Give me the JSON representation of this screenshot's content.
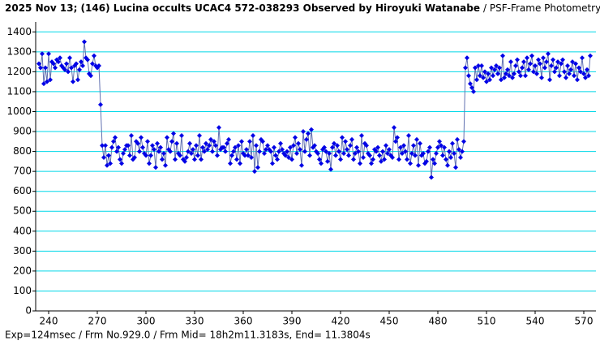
{
  "chart_data": {
    "type": "line",
    "title": "2025 Nov 13; (146) Lucina occults UCAC4 572-038293 Observed by Hiroyuki Watanabe",
    "subtitle": "/ PSF-Frame Photometry /",
    "annotation": "Exp=124msec / Frm No.929.0 / Frm Mid= 18h2m11.3183s,  End= 11.3804s",
    "xlim": [
      232,
      577.5
    ],
    "ylim": [
      0,
      1450
    ],
    "xticks": [
      240,
      270,
      300,
      330,
      360,
      390,
      420,
      450,
      480,
      510,
      540,
      570
    ],
    "yticks": [
      0,
      100,
      200,
      300,
      400,
      500,
      600,
      700,
      800,
      900,
      1000,
      1100,
      1200,
      1300,
      1400
    ],
    "grid": true,
    "series": [
      {
        "color": "#0000e6",
        "x": [
          234,
          235,
          236,
          237,
          238,
          239,
          240,
          241,
          242,
          243,
          244,
          245,
          246,
          247,
          248,
          249,
          250,
          251,
          252,
          253,
          254,
          255,
          256,
          257,
          258,
          259,
          260,
          261,
          262,
          263,
          264,
          265,
          266,
          267,
          268,
          269,
          270,
          271,
          272,
          273,
          274,
          275,
          276,
          277,
          278,
          279,
          280,
          281,
          282,
          283,
          284,
          285,
          286,
          287,
          288,
          289,
          290,
          291,
          292,
          293,
          294,
          295,
          296,
          297,
          298,
          299,
          300,
          301,
          302,
          303,
          304,
          305,
          306,
          307,
          308,
          309,
          310,
          311,
          312,
          313,
          314,
          315,
          316,
          317,
          318,
          319,
          320,
          321,
          322,
          323,
          324,
          325,
          326,
          327,
          328,
          329,
          330,
          331,
          332,
          333,
          334,
          335,
          336,
          337,
          338,
          339,
          340,
          341,
          342,
          343,
          344,
          345,
          346,
          347,
          348,
          349,
          350,
          351,
          352,
          353,
          354,
          355,
          356,
          357,
          358,
          359,
          360,
          361,
          362,
          363,
          364,
          365,
          366,
          367,
          368,
          369,
          370,
          371,
          372,
          373,
          374,
          375,
          376,
          377,
          378,
          379,
          380,
          381,
          382,
          383,
          384,
          385,
          386,
          387,
          388,
          389,
          390,
          391,
          392,
          393,
          394,
          395,
          396,
          397,
          398,
          399,
          400,
          401,
          402,
          403,
          404,
          405,
          406,
          407,
          408,
          409,
          410,
          411,
          412,
          413,
          414,
          415,
          416,
          417,
          418,
          419,
          420,
          421,
          422,
          423,
          424,
          425,
          426,
          427,
          428,
          429,
          430,
          431,
          432,
          433,
          434,
          435,
          436,
          437,
          438,
          439,
          440,
          441,
          442,
          443,
          444,
          445,
          446,
          447,
          448,
          449,
          450,
          451,
          452,
          453,
          454,
          455,
          456,
          457,
          458,
          459,
          460,
          461,
          462,
          463,
          464,
          465,
          466,
          467,
          468,
          469,
          470,
          471,
          472,
          473,
          474,
          475,
          476,
          477,
          478,
          479,
          480,
          481,
          482,
          483,
          484,
          485,
          486,
          487,
          488,
          489,
          490,
          491,
          492,
          493,
          494,
          495,
          496,
          497,
          498,
          499,
          500,
          501,
          502,
          503,
          504,
          505,
          506,
          507,
          508,
          509,
          510,
          511,
          512,
          513,
          514,
          515,
          516,
          517,
          518,
          519,
          520,
          521,
          522,
          523,
          524,
          525,
          526,
          527,
          528,
          529,
          530,
          531,
          532,
          533,
          534,
          535,
          536,
          537,
          538,
          539,
          540,
          541,
          542,
          543,
          544,
          545,
          546,
          547,
          548,
          549,
          550,
          551,
          552,
          553,
          554,
          555,
          556,
          557,
          558,
          559,
          560,
          561,
          562,
          563,
          564,
          565,
          566,
          567,
          568,
          569,
          570,
          571,
          572,
          573,
          574
        ],
        "values": [
          1240,
          1220,
          1290,
          1140,
          1220,
          1150,
          1290,
          1160,
          1250,
          1240,
          1220,
          1260,
          1250,
          1270,
          1230,
          1220,
          1210,
          1240,
          1200,
          1270,
          1220,
          1150,
          1230,
          1240,
          1160,
          1210,
          1250,
          1230,
          1350,
          1270,
          1260,
          1190,
          1180,
          1240,
          1280,
          1230,
          1220,
          1230,
          1035,
          830,
          770,
          830,
          730,
          780,
          740,
          820,
          850,
          870,
          800,
          820,
          760,
          740,
          790,
          810,
          830,
          830,
          780,
          880,
          760,
          770,
          850,
          840,
          800,
          870,
          820,
          790,
          780,
          850,
          740,
          780,
          830,
          810,
          720,
          840,
          800,
          820,
          760,
          790,
          730,
          870,
          810,
          800,
          850,
          890,
          760,
          840,
          790,
          780,
          880,
          760,
          750,
          770,
          800,
          840,
          790,
          810,
          760,
          830,
          780,
          880,
          760,
          820,
          800,
          840,
          810,
          830,
          860,
          800,
          850,
          830,
          780,
          920,
          810,
          820,
          820,
          800,
          840,
          860,
          740,
          780,
          800,
          820,
          760,
          830,
          740,
          850,
          790,
          780,
          810,
          780,
          850,
          770,
          880,
          700,
          830,
          720,
          800,
          860,
          850,
          790,
          810,
          830,
          810,
          800,
          740,
          820,
          780,
          760,
          800,
          840,
          810,
          790,
          780,
          800,
          770,
          820,
          760,
          830,
          870,
          790,
          840,
          810,
          730,
          900,
          800,
          860,
          890,
          780,
          910,
          820,
          830,
          800,
          790,
          760,
          740,
          810,
          820,
          800,
          750,
          790,
          710,
          820,
          840,
          780,
          830,
          800,
          760,
          870,
          790,
          850,
          810,
          780,
          830,
          860,
          760,
          790,
          820,
          800,
          740,
          880,
          770,
          840,
          830,
          790,
          780,
          740,
          760,
          810,
          800,
          820,
          780,
          750,
          800,
          760,
          830,
          790,
          810,
          780,
          770,
          920,
          850,
          870,
          760,
          820,
          790,
          830,
          800,
          760,
          880,
          740,
          790,
          830,
          780,
          860,
          730,
          840,
          780,
          790,
          740,
          750,
          800,
          820,
          670,
          760,
          740,
          790,
          820,
          850,
          830,
          780,
          820,
          760,
          730,
          800,
          770,
          840,
          790,
          720,
          860,
          810,
          770,
          800,
          850,
          1220,
          1270,
          1180,
          1140,
          1120,
          1100,
          1220,
          1160,
          1230,
          1180,
          1230,
          1170,
          1200,
          1150,
          1190,
          1160,
          1220,
          1180,
          1210,
          1230,
          1190,
          1220,
          1160,
          1280,
          1170,
          1190,
          1210,
          1180,
          1250,
          1170,
          1190,
          1230,
          1260,
          1200,
          1180,
          1220,
          1250,
          1180,
          1270,
          1210,
          1240,
          1280,
          1200,
          1230,
          1190,
          1260,
          1240,
          1170,
          1270,
          1220,
          1250,
          1290,
          1160,
          1230,
          1260,
          1200,
          1220,
          1250,
          1180,
          1240,
          1260,
          1200,
          1170,
          1230,
          1190,
          1210,
          1250,
          1180,
          1240,
          1160,
          1220,
          1200,
          1270,
          1190,
          1170,
          1210,
          1180,
          1280
        ]
      }
    ]
  }
}
